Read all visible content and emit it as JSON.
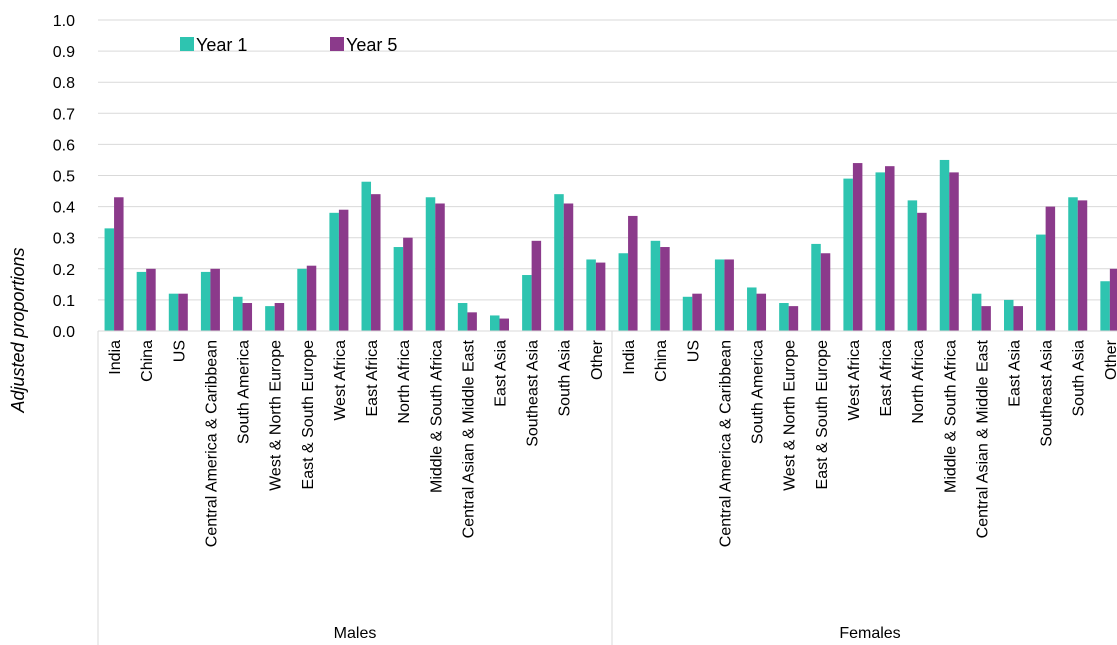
{
  "chart_data": {
    "type": "bar",
    "ylabel": "Adjusted proportions",
    "xlabel": "",
    "ylim": [
      0.0,
      1.0
    ],
    "yticks": [
      "0.0",
      "0.1",
      "0.2",
      "0.3",
      "0.4",
      "0.5",
      "0.6",
      "0.7",
      "0.8",
      "0.9",
      "1.0"
    ],
    "grid": true,
    "legend_position": "top-left",
    "colors": {
      "Year 1": "#2ec4b0",
      "Year 5": "#8b3a8b"
    },
    "groups": [
      {
        "label": "Males",
        "categories": [
          "India",
          "China",
          "US",
          "Central America & Caribbean",
          "South America",
          "West & North Europe",
          "East & South Europe",
          "West Africa",
          "East Africa",
          "North Africa",
          "Middle & South Africa",
          "Central Asian & Middle East",
          "East Asia",
          "Southeast Asia",
          "South Asia",
          "Other"
        ],
        "series": [
          {
            "name": "Year 1",
            "values": [
              0.33,
              0.19,
              0.12,
              0.19,
              0.11,
              0.08,
              0.2,
              0.38,
              0.48,
              0.27,
              0.43,
              0.09,
              0.05,
              0.18,
              0.44,
              0.23
            ]
          },
          {
            "name": "Year 5",
            "values": [
              0.43,
              0.2,
              0.12,
              0.2,
              0.09,
              0.09,
              0.21,
              0.39,
              0.44,
              0.3,
              0.41,
              0.06,
              0.04,
              0.29,
              0.41,
              0.22
            ]
          }
        ]
      },
      {
        "label": "Females",
        "categories": [
          "India",
          "China",
          "US",
          "Central America & Caribbean",
          "South America",
          "West & North Europe",
          "East & South Europe",
          "West Africa",
          "East Africa",
          "North Africa",
          "Middle & South Africa",
          "Central Asian & Middle East",
          "East Asia",
          "Southeast Asia",
          "South Asia",
          "Other"
        ],
        "series": [
          {
            "name": "Year 1",
            "values": [
              0.25,
              0.29,
              0.11,
              0.23,
              0.14,
              0.09,
              0.28,
              0.49,
              0.51,
              0.42,
              0.55,
              0.12,
              0.1,
              0.31,
              0.43,
              0.16
            ]
          },
          {
            "name": "Year 5",
            "values": [
              0.37,
              0.27,
              0.12,
              0.23,
              0.12,
              0.08,
              0.25,
              0.54,
              0.53,
              0.38,
              0.51,
              0.08,
              0.08,
              0.4,
              0.42,
              0.2
            ]
          }
        ]
      }
    ]
  }
}
